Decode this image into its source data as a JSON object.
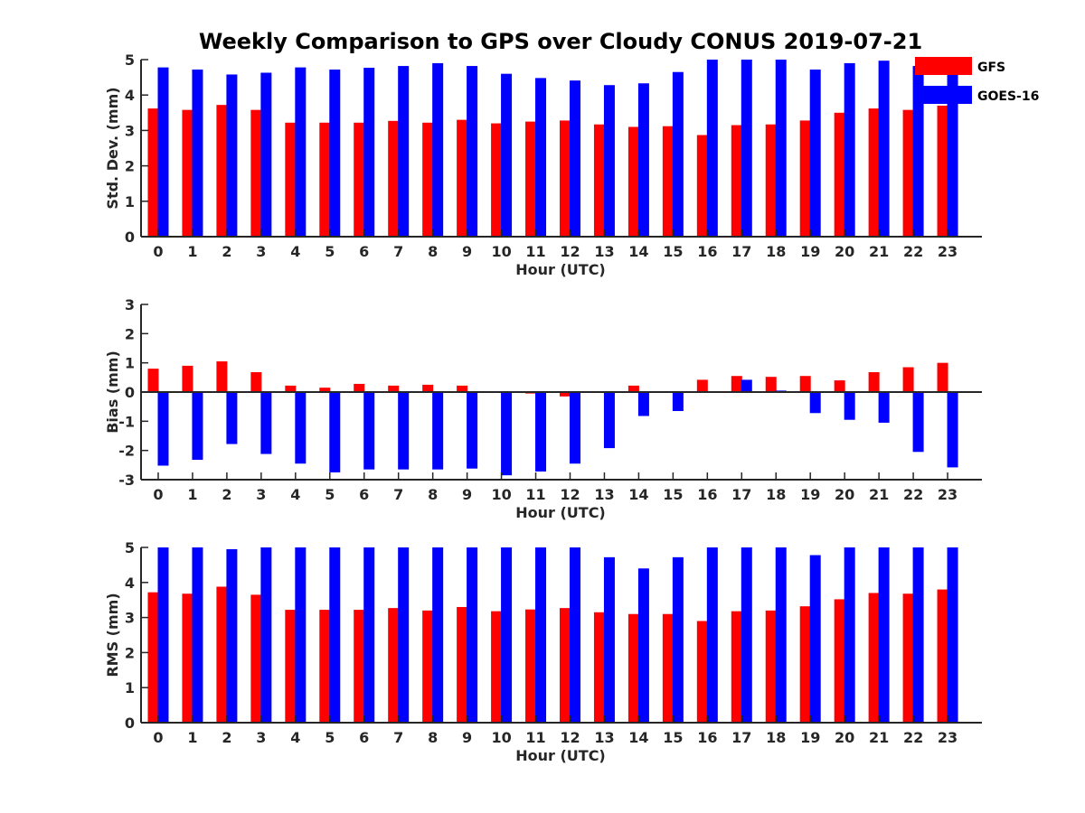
{
  "figure": {
    "title": "Weekly Comparison to GPS over Cloudy CONUS 2019-07-21"
  },
  "legend": {
    "items": [
      {
        "label": "GFS",
        "color": "#ff0000"
      },
      {
        "label": "GOES-16",
        "color": "#0000ff"
      }
    ]
  },
  "chart_data": [
    {
      "type": "bar",
      "title": "Weekly Comparison to GPS over Cloudy CONUS 2019-07-21",
      "xlabel": "Hour (UTC)",
      "ylabel": "Std. Dev. (mm)",
      "ylim": [
        0,
        5
      ],
      "yticks": [
        0,
        1,
        2,
        3,
        4,
        5
      ],
      "categories": [
        "0",
        "1",
        "2",
        "3",
        "4",
        "5",
        "6",
        "7",
        "8",
        "9",
        "10",
        "11",
        "12",
        "13",
        "14",
        "15",
        "16",
        "17",
        "18",
        "19",
        "20",
        "21",
        "22",
        "23"
      ],
      "legend": "top-right",
      "grid": false,
      "series": [
        {
          "name": "GFS",
          "color": "#ff0000",
          "values": [
            3.62,
            3.58,
            3.72,
            3.58,
            3.22,
            3.22,
            3.22,
            3.27,
            3.22,
            3.3,
            3.2,
            3.25,
            3.28,
            3.17,
            3.1,
            3.12,
            2.87,
            3.15,
            3.17,
            3.28,
            3.5,
            3.62,
            3.58,
            3.7
          ]
        },
        {
          "name": "GOES-16",
          "color": "#0000ff",
          "values": [
            4.78,
            4.72,
            4.58,
            4.63,
            4.78,
            4.72,
            4.77,
            4.82,
            4.9,
            4.82,
            4.6,
            4.48,
            4.41,
            4.28,
            4.33,
            4.65,
            5.0,
            5.0,
            5.0,
            4.72,
            4.9,
            4.97,
            4.82,
            4.7
          ]
        }
      ]
    },
    {
      "type": "bar",
      "xlabel": "Hour (UTC)",
      "ylabel": "Bias (mm)",
      "ylim": [
        -3,
        3
      ],
      "yticks": [
        -3,
        -2,
        -1,
        0,
        1,
        2,
        3
      ],
      "categories": [
        "0",
        "1",
        "2",
        "3",
        "4",
        "5",
        "6",
        "7",
        "8",
        "9",
        "10",
        "11",
        "12",
        "13",
        "14",
        "15",
        "16",
        "17",
        "18",
        "19",
        "20",
        "21",
        "22",
        "23"
      ],
      "grid": false,
      "zero_line": true,
      "series": [
        {
          "name": "GFS",
          "color": "#ff0000",
          "values": [
            0.8,
            0.9,
            1.05,
            0.68,
            0.22,
            0.15,
            0.28,
            0.22,
            0.25,
            0.22,
            0.03,
            -0.05,
            -0.15,
            0.02,
            0.22,
            0.03,
            0.42,
            0.55,
            0.52,
            0.55,
            0.4,
            0.68,
            0.85,
            1.0
          ]
        },
        {
          "name": "GOES-16",
          "color": "#0000ff",
          "values": [
            -2.52,
            -2.32,
            -1.78,
            -2.12,
            -2.45,
            -2.75,
            -2.65,
            -2.65,
            -2.65,
            -2.62,
            -2.85,
            -2.72,
            -2.45,
            -1.92,
            -0.82,
            -0.65,
            0.0,
            0.42,
            0.05,
            -0.72,
            -0.95,
            -1.05,
            -2.05,
            -2.58
          ]
        }
      ]
    },
    {
      "type": "bar",
      "xlabel": "Hour (UTC)",
      "ylabel": "RMS (mm)",
      "ylim": [
        0,
        5
      ],
      "yticks": [
        0,
        1,
        2,
        3,
        4,
        5
      ],
      "categories": [
        "0",
        "1",
        "2",
        "3",
        "4",
        "5",
        "6",
        "7",
        "8",
        "9",
        "10",
        "11",
        "12",
        "13",
        "14",
        "15",
        "16",
        "17",
        "18",
        "19",
        "20",
        "21",
        "22",
        "23"
      ],
      "grid": false,
      "series": [
        {
          "name": "GFS",
          "color": "#ff0000",
          "values": [
            3.72,
            3.68,
            3.88,
            3.65,
            3.22,
            3.22,
            3.22,
            3.27,
            3.2,
            3.3,
            3.18,
            3.23,
            3.27,
            3.15,
            3.1,
            3.1,
            2.9,
            3.18,
            3.2,
            3.32,
            3.52,
            3.7,
            3.68,
            3.8
          ]
        },
        {
          "name": "GOES-16",
          "color": "#0000ff",
          "values": [
            5.0,
            5.0,
            4.95,
            5.0,
            5.0,
            5.0,
            5.0,
            5.0,
            5.0,
            5.0,
            5.0,
            5.0,
            5.0,
            4.72,
            4.4,
            4.72,
            5.0,
            5.0,
            5.0,
            4.78,
            5.0,
            5.0,
            5.0,
            5.0
          ]
        }
      ]
    }
  ]
}
